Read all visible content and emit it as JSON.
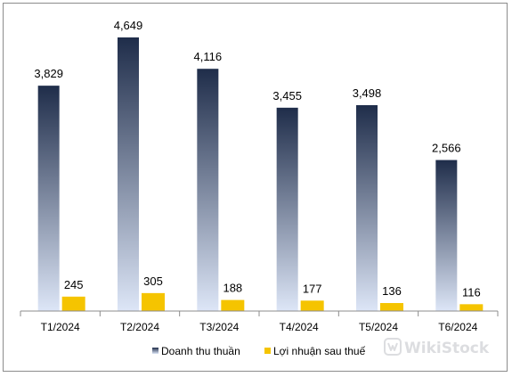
{
  "chart_data": {
    "type": "bar",
    "title": "",
    "xlabel": "",
    "ylabel": "",
    "ylim": [
      0,
      4800
    ],
    "grid": false,
    "legend_position": "bottom",
    "categories": [
      "T1/2024",
      "T2/2024",
      "T3/2024",
      "T4/2024",
      "T5/2024",
      "T6/2024"
    ],
    "series": [
      {
        "name": "Doanh thu thuần",
        "values": [
          3829,
          4649,
          4116,
          3455,
          3498,
          2566
        ],
        "labels": [
          "3,829",
          "4,649",
          "4,116",
          "3,455",
          "3,498",
          "2,566"
        ],
        "color_top": "#1f2d4a",
        "color_bottom": "#dde6f7"
      },
      {
        "name": "Lợi nhuận sau thuế",
        "values": [
          245,
          305,
          188,
          177,
          136,
          116
        ],
        "labels": [
          "245",
          "305",
          "188",
          "177",
          "136",
          "116"
        ],
        "color": "#f5c400"
      }
    ]
  },
  "watermark": {
    "text": "WikiStock",
    "icon": "wikistock-logo-icon"
  }
}
